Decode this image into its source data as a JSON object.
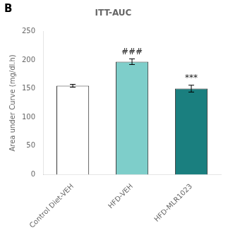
{
  "chart_data": {
    "type": "bar",
    "title": "ITT-AUC",
    "panel_label": "B",
    "ylabel": "Area under Curve (mg/dl.h)",
    "categories": [
      "Control Diet-VEH",
      "HFD-VEH",
      "HFD-MLR1023"
    ],
    "values": [
      155,
      197,
      150
    ],
    "errors": [
      2.5,
      5,
      6
    ],
    "colors": [
      "#ffffff",
      "#7ececa",
      "#1a7f7f"
    ],
    "annotations": [
      {
        "category": "HFD-VEH",
        "text": "###"
      },
      {
        "category": "HFD-MLR1023",
        "text": "***"
      }
    ],
    "ylim": [
      0,
      250
    ],
    "yticks": [
      0,
      50,
      100,
      150,
      200,
      250
    ],
    "grid": false,
    "legend": false
  }
}
